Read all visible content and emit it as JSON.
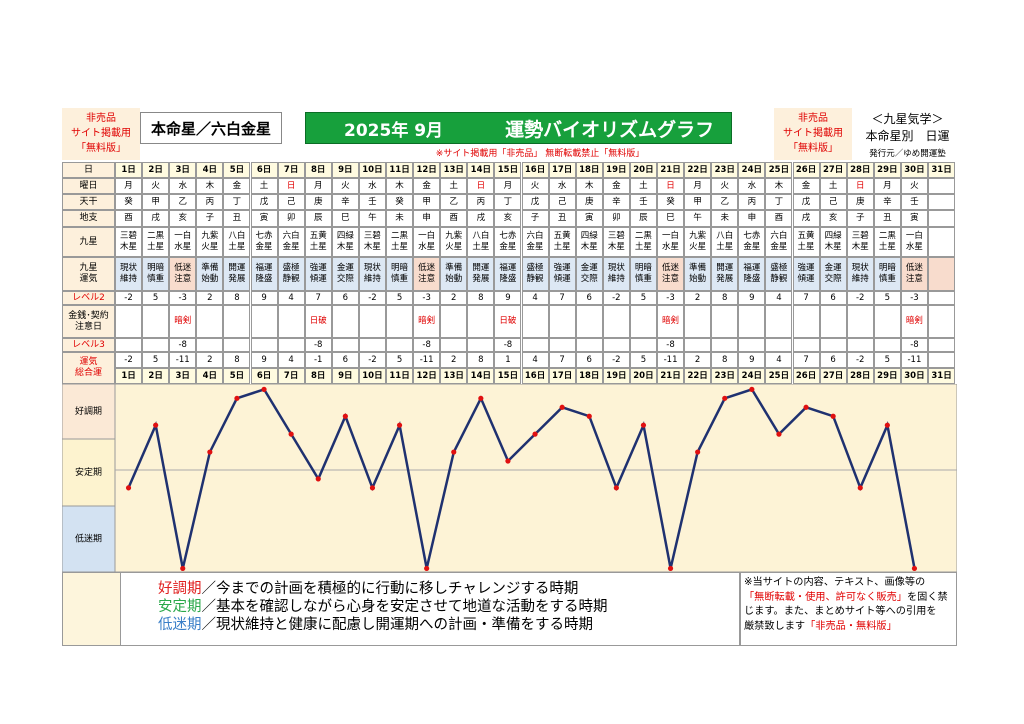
{
  "header": {
    "left_stamp": [
      "非売品",
      "サイト掲載用",
      "「無料版」"
    ],
    "honmei": "本命星／六白金星",
    "title_date": "2025年 9月",
    "title": "運勢バイオリズムグラフ",
    "notice": "※サイト掲載用「非売品」 無断転載禁止「無料版」",
    "right_stamp": [
      "非売品",
      "サイト掲載用",
      "「無料版」"
    ],
    "kyusei": "＜九星気学＞",
    "daily": "本命星別　日運",
    "publisher": "発行元／ゆめ開運塾"
  },
  "table": {
    "row_labels": [
      "日",
      "曜日",
      "天干",
      "地支",
      "九星",
      [
        "九星",
        "運気"
      ],
      "レベル2",
      [
        "金銭･契約",
        "注意日"
      ],
      "レベル3",
      [
        "運気",
        "総合運"
      ]
    ],
    "days": [
      "1日",
      "2日",
      "3日",
      "4日",
      "5日",
      "6日",
      "7日",
      "8日",
      "9日",
      "10日",
      "11日",
      "12日",
      "13日",
      "14日",
      "15日",
      "16日",
      "17日",
      "18日",
      "19日",
      "20日",
      "21日",
      "22日",
      "23日",
      "24日",
      "25日",
      "26日",
      "27日",
      "28日",
      "29日",
      "30日",
      "31日"
    ],
    "weekdays": [
      "月",
      "火",
      "水",
      "木",
      "金",
      "土",
      "日",
      "月",
      "火",
      "水",
      "木",
      "金",
      "土",
      "日",
      "月",
      "火",
      "水",
      "木",
      "金",
      "土",
      "日",
      "月",
      "火",
      "水",
      "木",
      "金",
      "土",
      "日",
      "月",
      "火",
      null
    ],
    "weekday_colors": [
      "#000",
      "#000",
      "#000",
      "#000",
      "#000",
      "#000",
      "#e00000",
      "#000",
      "#000",
      "#000",
      "#000",
      "#000",
      "#000",
      "#e00000",
      "#000",
      "#000",
      "#000",
      "#000",
      "#000",
      "#000",
      "#e00000",
      "#000",
      "#000",
      "#000",
      "#000",
      "#000",
      "#000",
      "#e00000",
      "#000",
      "#000",
      "#000"
    ],
    "stems": [
      "癸",
      "甲",
      "乙",
      "丙",
      "丁",
      "戊",
      "己",
      "庚",
      "辛",
      "壬",
      "癸",
      "甲",
      "乙",
      "丙",
      "丁",
      "戊",
      "己",
      "庚",
      "辛",
      "壬",
      "癸",
      "甲",
      "乙",
      "丙",
      "丁",
      "戊",
      "己",
      "庚",
      "辛",
      "壬",
      null
    ],
    "branches": [
      "酉",
      "戌",
      "亥",
      "子",
      "丑",
      "寅",
      "卯",
      "辰",
      "巳",
      "午",
      "未",
      "申",
      "酉",
      "戌",
      "亥",
      "子",
      "丑",
      "寅",
      "卯",
      "辰",
      "巳",
      "午",
      "未",
      "申",
      "酉",
      "戌",
      "亥",
      "子",
      "丑",
      "寅",
      null
    ],
    "stars": [
      [
        "三碧",
        "木星"
      ],
      [
        "二黒",
        "土星"
      ],
      [
        "一白",
        "水星"
      ],
      [
        "九紫",
        "火星"
      ],
      [
        "八白",
        "土星"
      ],
      [
        "七赤",
        "金星"
      ],
      [
        "六白",
        "金星"
      ],
      [
        "五黄",
        "土星"
      ],
      [
        "四緑",
        "木星"
      ],
      [
        "三碧",
        "木星"
      ],
      [
        "二黒",
        "土星"
      ],
      [
        "一白",
        "水星"
      ],
      [
        "九紫",
        "火星"
      ],
      [
        "八白",
        "土星"
      ],
      [
        "七赤",
        "金星"
      ],
      [
        "六白",
        "金星"
      ],
      [
        "五黄",
        "土星"
      ],
      [
        "四緑",
        "木星"
      ],
      [
        "三碧",
        "木星"
      ],
      [
        "二黒",
        "土星"
      ],
      [
        "一白",
        "水星"
      ],
      [
        "九紫",
        "火星"
      ],
      [
        "八白",
        "土星"
      ],
      [
        "七赤",
        "金星"
      ],
      [
        "六白",
        "金星"
      ],
      [
        "五黄",
        "土星"
      ],
      [
        "四緑",
        "木星"
      ],
      [
        "三碧",
        "木星"
      ],
      [
        "二黒",
        "土星"
      ],
      [
        "一白",
        "水星"
      ],
      null
    ],
    "fortunes": [
      [
        "現状",
        "維持"
      ],
      [
        "明暗",
        "慎重"
      ],
      [
        "低迷",
        "注意"
      ],
      [
        "準備",
        "始動"
      ],
      [
        "開運",
        "発展"
      ],
      [
        "福運",
        "隆盛"
      ],
      [
        "盛極",
        "静観"
      ],
      [
        "強運",
        "傾運"
      ],
      [
        "金運",
        "交際"
      ],
      [
        "現状",
        "維持"
      ],
      [
        "明暗",
        "慎重"
      ],
      [
        "低迷",
        "注意"
      ],
      [
        "準備",
        "始動"
      ],
      [
        "開運",
        "発展"
      ],
      [
        "福運",
        "隆盛"
      ],
      [
        "盛極",
        "静観"
      ],
      [
        "強運",
        "傾運"
      ],
      [
        "金運",
        "交際"
      ],
      [
        "現状",
        "維持"
      ],
      [
        "明暗",
        "慎重"
      ],
      [
        "低迷",
        "注意"
      ],
      [
        "準備",
        "始動"
      ],
      [
        "開運",
        "発展"
      ],
      [
        "福運",
        "隆盛"
      ],
      [
        "盛極",
        "静観"
      ],
      [
        "強運",
        "傾運"
      ],
      [
        "金運",
        "交際"
      ],
      [
        "現状",
        "維持"
      ],
      [
        "明暗",
        "慎重"
      ],
      [
        "低迷",
        "注意"
      ],
      null
    ],
    "fortune_colors": [
      "#dde8f4",
      "#dde8f4",
      "#f8dccd",
      "#dde8f4",
      "#dde8f4",
      "#dde8f4",
      "#dde8f4",
      "#dde8f4",
      "#dde8f4",
      "#dde8f4",
      "#dde8f4",
      "#f8dccd",
      "#dde8f4",
      "#dde8f4",
      "#dde8f4",
      "#dde8f4",
      "#dde8f4",
      "#dde8f4",
      "#dde8f4",
      "#dde8f4",
      "#f8dccd",
      "#dde8f4",
      "#dde8f4",
      "#dde8f4",
      "#dde8f4",
      "#dde8f4",
      "#dde8f4",
      "#dde8f4",
      "#dde8f4",
      "#f8dccd",
      "#f8dccd"
    ],
    "level2": [
      -2,
      5,
      -3,
      2,
      8,
      9,
      4,
      7,
      6,
      -2,
      5,
      -3,
      2,
      8,
      9,
      4,
      7,
      6,
      -2,
      5,
      -3,
      2,
      8,
      9,
      4,
      7,
      6,
      -2,
      5,
      -3,
      null
    ],
    "money": [
      null,
      null,
      "暗剣",
      null,
      null,
      null,
      null,
      "日破",
      null,
      null,
      null,
      "暗剣",
      null,
      null,
      "日破",
      null,
      null,
      null,
      null,
      null,
      "暗剣",
      null,
      null,
      null,
      null,
      null,
      null,
      null,
      null,
      "暗剣",
      null
    ],
    "level3": [
      null,
      null,
      -8,
      null,
      null,
      null,
      null,
      -8,
      null,
      null,
      null,
      -8,
      null,
      null,
      -8,
      null,
      null,
      null,
      null,
      null,
      -8,
      null,
      null,
      null,
      null,
      null,
      null,
      null,
      null,
      -8,
      null
    ]
  },
  "chart_data": {
    "type": "line",
    "categories": [
      "1日",
      "2日",
      "3日",
      "4日",
      "5日",
      "6日",
      "7日",
      "8日",
      "9日",
      "10日",
      "11日",
      "12日",
      "13日",
      "14日",
      "15日",
      "16日",
      "17日",
      "18日",
      "19日",
      "20日",
      "21日",
      "22日",
      "23日",
      "24日",
      "25日",
      "26日",
      "27日",
      "28日",
      "29日",
      "30日",
      "31日"
    ],
    "series": [
      {
        "name": "運気総合運",
        "color": "#1f3170",
        "marker_color": "#e01010",
        "values": [
          -2,
          5,
          -11,
          2,
          8,
          9,
          4,
          -1,
          6,
          -2,
          5,
          -11,
          2,
          8,
          1,
          4,
          7,
          6,
          -2,
          5,
          -11,
          2,
          8,
          9,
          4,
          7,
          6,
          -2,
          5,
          -11,
          null
        ]
      }
    ],
    "ylim": [
      -11.4,
      9.6
    ],
    "bands": [
      "好調期",
      "安定期",
      "低迷期"
    ],
    "band_colors": [
      "#fbe9d6",
      "#fdf3cf",
      "#d3e2f2"
    ]
  },
  "footer": {
    "legend": [
      {
        "term": "好調期",
        "text": "／今までの計画を積極的に行動に移しチャレンジする時期",
        "color": "#e02020"
      },
      {
        "term": "安定期",
        "text": "／基本を確認しながら心身を安定させて地道な活動をする時期",
        "color": "#2aa84a"
      },
      {
        "term": "低迷期",
        "text": "／現状維持と健康に配慮し開運期への計画・準備をする時期",
        "color": "#3a7fc8"
      }
    ],
    "notice": [
      [
        {
          "text": "※当サイトの内容、テキスト、画像等の",
          "color": "#000"
        }
      ],
      [
        {
          "text": "「無断転載・使用、許可なく販売」",
          "color": "#e00000"
        },
        {
          "text": "を固く禁",
          "color": "#000"
        }
      ],
      [
        {
          "text": "じます。また、まとめサイト等への引用を",
          "color": "#000"
        }
      ],
      [
        {
          "text": "厳禁致します",
          "color": "#000"
        },
        {
          "text": "「非売品・無料版」",
          "color": "#e00000"
        }
      ]
    ]
  }
}
